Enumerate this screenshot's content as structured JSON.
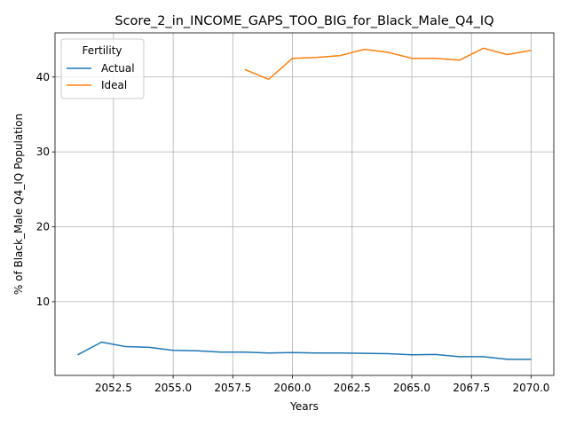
{
  "chart_data": {
    "type": "line",
    "title": "Score_2_in_INCOME_GAPS_TOO_BIG_for_Black_Male_Q4_IQ",
    "xlabel": "Years",
    "ylabel": "% of Black_Male Q4_IQ Population",
    "xlim": [
      2050.05,
      2070.95
    ],
    "ylim": [
      0.15,
      45.9
    ],
    "xticks": [
      "2052.5",
      "2055.0",
      "2057.5",
      "2060.0",
      "2062.5",
      "2065.0",
      "2067.5",
      "2070.0"
    ],
    "xtick_values": [
      2052.5,
      2055.0,
      2057.5,
      2060.0,
      2062.5,
      2065.0,
      2067.5,
      2070.0
    ],
    "yticks": [
      "10",
      "20",
      "30",
      "40"
    ],
    "ytick_values": [
      10,
      20,
      30,
      40
    ],
    "grid": true,
    "legend": {
      "title": "Fertility",
      "placement": "upper-left"
    },
    "series": [
      {
        "name": "Actual",
        "color": "#1f77b4",
        "x": [
          2051,
          2052,
          2053,
          2054,
          2055,
          2056,
          2057,
          2058,
          2059,
          2060,
          2061,
          2062,
          2063,
          2064,
          2065,
          2066,
          2067,
          2068,
          2069,
          2070
        ],
        "y": [
          2.9,
          4.6,
          4.0,
          3.9,
          3.5,
          3.45,
          3.25,
          3.25,
          3.15,
          3.2,
          3.15,
          3.15,
          3.1,
          3.05,
          2.9,
          2.95,
          2.65,
          2.65,
          2.3,
          2.3
        ]
      },
      {
        "name": "Ideal",
        "color": "#ff7f0e",
        "x": [
          2058,
          2059,
          2060,
          2061,
          2062,
          2063,
          2064,
          2065,
          2066,
          2067,
          2068,
          2069,
          2070
        ],
        "y": [
          41.0,
          39.7,
          42.5,
          42.6,
          42.85,
          43.7,
          43.3,
          42.5,
          42.5,
          42.25,
          43.85,
          43.0,
          43.55
        ]
      }
    ]
  }
}
